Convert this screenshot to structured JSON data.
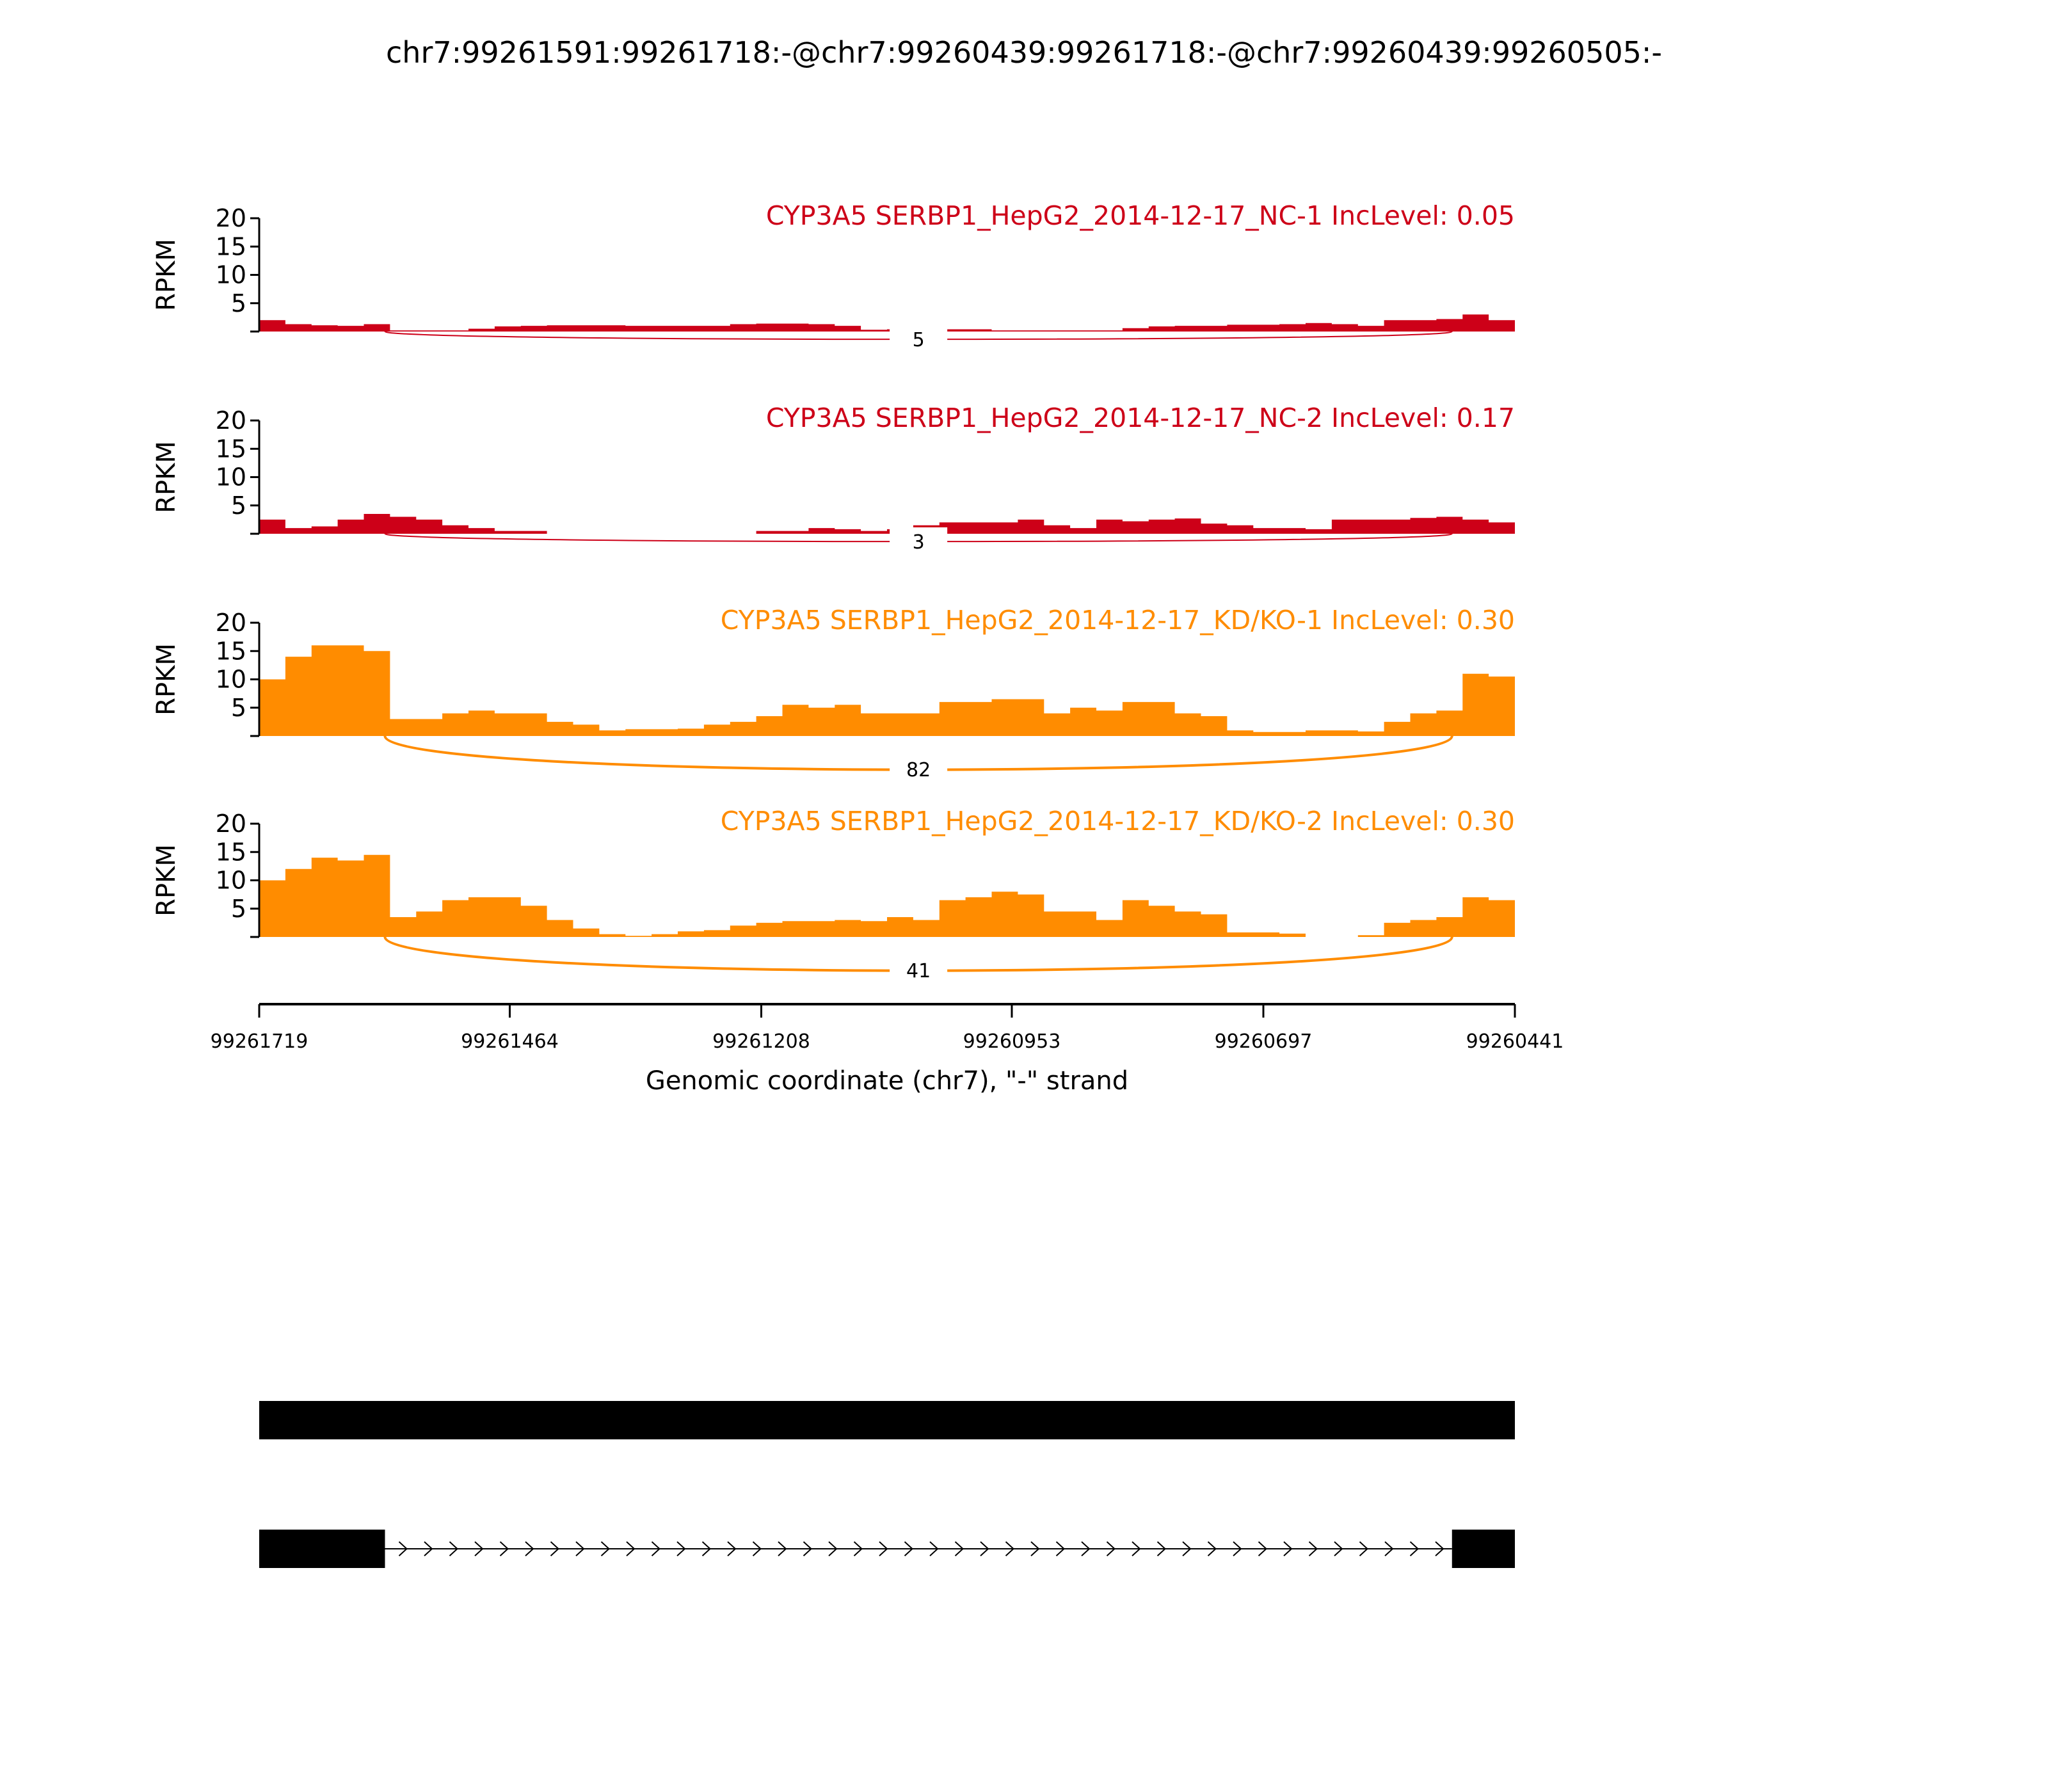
{
  "chart_data": {
    "type": "area",
    "title": "chr7:99261591:99261718:-@chr7:99260439:99261718:-@chr7:99260439:99260505:-",
    "xlabel": "Genomic coordinate (chr7), \"-\" strand",
    "ylabel": "RPKM",
    "xlim": [
      99261719,
      99260441
    ],
    "xticks": [
      "99261719",
      "99261464",
      "99261208",
      "99260953",
      "99260697",
      "99260441"
    ],
    "xtick_values": [
      99261719,
      99261464,
      99261208,
      99260953,
      99260697,
      99260441
    ],
    "ylim": [
      0,
      20
    ],
    "yticks": [
      "5",
      "10",
      "15",
      "20"
    ],
    "ytick_values": [
      5,
      10,
      15,
      20
    ],
    "bin_count": 48,
    "junction": {
      "start": 99261591,
      "end": 99260505
    },
    "colors": {
      "NC": "#cd0018",
      "KD": "#ff8c00"
    },
    "series": [
      {
        "name": "CYP3A5 SERBP1_HepG2_2014-12-17_NC-1 IncLevel: 0.05",
        "color": "#cd0018",
        "junction_count": "5",
        "junction_weight": 2,
        "values": [
          2,
          1.3,
          1.1,
          1.0,
          1.3,
          0.2,
          0.2,
          0.2,
          0.5,
          0.9,
          1.0,
          1.1,
          1.1,
          1.1,
          1.0,
          1.0,
          1.0,
          1.0,
          1.3,
          1.4,
          1.4,
          1.3,
          1.0,
          0.3,
          0.4,
          0.4,
          0.4,
          0.4,
          0.2,
          0.2,
          0.2,
          0.2,
          0.2,
          0.6,
          0.9,
          1.0,
          1.0,
          1.2,
          1.2,
          1.3,
          1.5,
          1.3,
          1.0,
          2.0,
          2.0,
          2.2,
          3.0,
          2.0
        ]
      },
      {
        "name": "CYP3A5 SERBP1_HepG2_2014-12-17_NC-2 IncLevel: 0.17",
        "color": "#cd0018",
        "junction_count": "3",
        "junction_weight": 2,
        "values": [
          2.5,
          1.0,
          1.3,
          2.5,
          3.5,
          3.0,
          2.5,
          1.5,
          1.0,
          0.5,
          0.5,
          0,
          0,
          0,
          0,
          0,
          0,
          0,
          0,
          0.5,
          0.5,
          1.0,
          0.8,
          0.5,
          0.8,
          1.5,
          2.0,
          2.0,
          2.0,
          2.5,
          1.5,
          1.0,
          2.5,
          2.2,
          2.5,
          2.7,
          1.8,
          1.5,
          1.0,
          1.0,
          0.8,
          2.5,
          2.5,
          2.5,
          2.8,
          3.0,
          2.5,
          2.0
        ]
      },
      {
        "name": "CYP3A5 SERBP1_HepG2_2014-12-17_KD/KO-1 IncLevel: 0.30",
        "color": "#ff8c00",
        "junction_count": "82",
        "junction_weight": 4,
        "values": [
          10,
          14,
          16,
          16,
          15,
          3,
          3,
          4,
          4.5,
          4,
          4,
          2.5,
          2,
          1,
          1.2,
          1.2,
          1.3,
          2,
          2.5,
          3.5,
          5.5,
          5,
          5.5,
          4,
          4,
          4,
          6,
          6,
          6.5,
          6.5,
          4,
          5,
          4.5,
          6,
          6,
          4,
          3.5,
          1,
          0.7,
          0.7,
          1,
          1,
          0.8,
          2.5,
          4,
          4.5,
          11,
          10.5
        ]
      },
      {
        "name": "CYP3A5 SERBP1_HepG2_2014-12-17_KD/KO-2 IncLevel: 0.30",
        "color": "#ff8c00",
        "junction_count": "41",
        "junction_weight": 4,
        "values": [
          10,
          12,
          14,
          13.5,
          14.5,
          3.5,
          4.5,
          6.5,
          7,
          7,
          5.5,
          3,
          1.5,
          0.5,
          0.2,
          0.5,
          1,
          1.2,
          2,
          2.5,
          2.8,
          2.8,
          3,
          2.8,
          3.5,
          3,
          6.5,
          7,
          8,
          7.5,
          4.5,
          4.5,
          3,
          6.5,
          5.5,
          4.5,
          4,
          0.8,
          0.8,
          0.6,
          0,
          0,
          0.3,
          2.5,
          3,
          3.5,
          7,
          6.5
        ]
      }
    ],
    "isoforms": [
      {
        "exons": [
          [
            99261719,
            99260441
          ]
        ]
      },
      {
        "exons": [
          [
            99261719,
            99261591
          ],
          [
            99260505,
            99260441
          ]
        ]
      }
    ]
  }
}
